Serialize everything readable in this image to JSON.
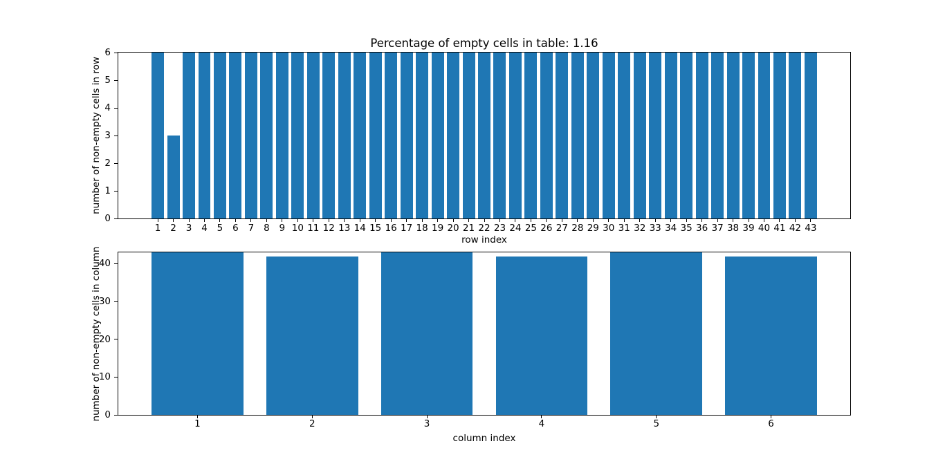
{
  "figure": {
    "background": "#ffffff",
    "bar_color": "#1f77b4",
    "spine_color": "#000000"
  },
  "chart_data": [
    {
      "type": "bar",
      "title": "Percentage of empty cells in table: 1.16",
      "xlabel": "row index",
      "ylabel": "number of non-empty cells in row",
      "categories": [
        1,
        2,
        3,
        4,
        5,
        6,
        7,
        8,
        9,
        10,
        11,
        12,
        13,
        14,
        15,
        16,
        17,
        18,
        19,
        20,
        21,
        22,
        23,
        24,
        25,
        26,
        27,
        28,
        29,
        30,
        31,
        32,
        33,
        34,
        35,
        36,
        37,
        38,
        39,
        40,
        41,
        42,
        43
      ],
      "values": [
        6,
        3,
        6,
        6,
        6,
        6,
        6,
        6,
        6,
        6,
        6,
        6,
        6,
        6,
        6,
        6,
        6,
        6,
        6,
        6,
        6,
        6,
        6,
        6,
        6,
        6,
        6,
        6,
        6,
        6,
        6,
        6,
        6,
        6,
        6,
        6,
        6,
        6,
        6,
        6,
        6,
        6,
        6
      ],
      "ylim": [
        0,
        6
      ],
      "yticks": [
        0,
        1,
        2,
        3,
        4,
        5,
        6
      ],
      "bar_color": "#1f77b4",
      "grid": false,
      "legend": null
    },
    {
      "type": "bar",
      "title": "",
      "xlabel": "column index",
      "ylabel": "number of non-empty cells in column",
      "categories": [
        1,
        2,
        3,
        4,
        5,
        6
      ],
      "values": [
        43,
        42,
        43,
        42,
        43,
        42
      ],
      "ylim": [
        0,
        43
      ],
      "yticks": [
        0,
        10,
        20,
        30,
        40
      ],
      "bar_color": "#1f77b4",
      "grid": false,
      "legend": null
    }
  ]
}
